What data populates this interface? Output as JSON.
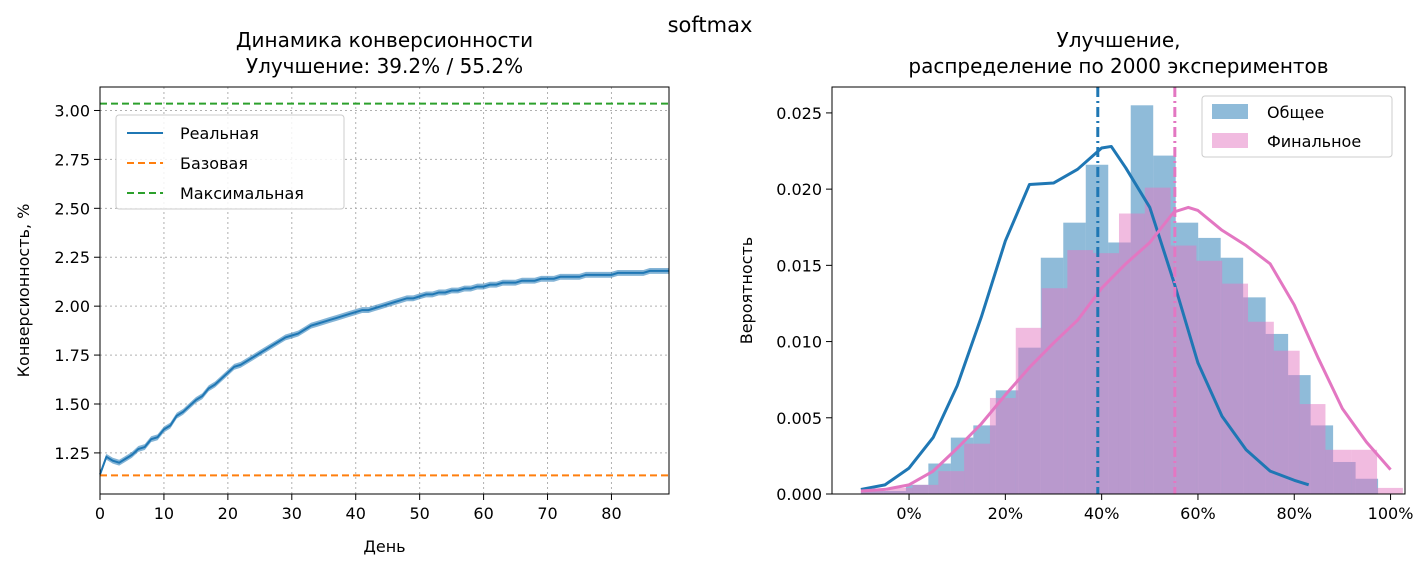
{
  "suptitle": "softmax",
  "chart_data": [
    {
      "type": "line",
      "title": "Динамика конверсионности\nУлучшение: 39.2% / 55.2%",
      "xlabel": "День",
      "ylabel": "Конверсионность, %",
      "xlim": [
        0,
        89
      ],
      "ylim": [
        1.04,
        3.12
      ],
      "xticks": [
        "0",
        "10",
        "20",
        "30",
        "40",
        "50",
        "60",
        "70",
        "80"
      ],
      "yticks": [
        "1.25",
        "1.50",
        "1.75",
        "2.00",
        "2.25",
        "2.50",
        "2.75",
        "3.00"
      ],
      "grid": true,
      "legend_position": "upper-left",
      "series": [
        {
          "name": "Реальная",
          "color": "#1f77b4",
          "style": "solid",
          "x": [
            0,
            1,
            2,
            3,
            4,
            5,
            6,
            7,
            8,
            9,
            10,
            11,
            12,
            13,
            14,
            15,
            16,
            17,
            18,
            19,
            20,
            21,
            22,
            23,
            24,
            25,
            26,
            27,
            28,
            29,
            30,
            31,
            32,
            33,
            34,
            35,
            36,
            37,
            38,
            39,
            40,
            41,
            42,
            43,
            44,
            45,
            46,
            47,
            48,
            49,
            50,
            51,
            52,
            53,
            54,
            55,
            56,
            57,
            58,
            59,
            60,
            61,
            62,
            63,
            64,
            65,
            66,
            67,
            68,
            69,
            70,
            71,
            72,
            73,
            74,
            75,
            76,
            77,
            78,
            79,
            80,
            81,
            82,
            83,
            84,
            85,
            86,
            87,
            88,
            89
          ],
          "values": [
            1.14,
            1.23,
            1.21,
            1.2,
            1.22,
            1.24,
            1.27,
            1.28,
            1.32,
            1.33,
            1.37,
            1.39,
            1.44,
            1.46,
            1.49,
            1.52,
            1.54,
            1.58,
            1.6,
            1.63,
            1.66,
            1.69,
            1.7,
            1.72,
            1.74,
            1.76,
            1.78,
            1.8,
            1.82,
            1.84,
            1.85,
            1.86,
            1.88,
            1.9,
            1.91,
            1.92,
            1.93,
            1.94,
            1.95,
            1.96,
            1.97,
            1.98,
            1.98,
            1.99,
            2.0,
            2.01,
            2.02,
            2.03,
            2.04,
            2.04,
            2.05,
            2.06,
            2.06,
            2.07,
            2.07,
            2.08,
            2.08,
            2.09,
            2.09,
            2.1,
            2.1,
            2.11,
            2.11,
            2.12,
            2.12,
            2.12,
            2.13,
            2.13,
            2.13,
            2.14,
            2.14,
            2.14,
            2.15,
            2.15,
            2.15,
            2.15,
            2.16,
            2.16,
            2.16,
            2.16,
            2.16,
            2.17,
            2.17,
            2.17,
            2.17,
            2.17,
            2.18,
            2.18,
            2.18,
            2.18
          ],
          "band_halfwidth": 0.015
        },
        {
          "name": "Базовая",
          "color": "#ff7f0e",
          "style": "dashed",
          "y": 1.135
        },
        {
          "name": "Максимальная",
          "color": "#2ca02c",
          "style": "dashed",
          "y": 3.035
        }
      ]
    },
    {
      "type": "bar",
      "subtype": "histogram+kde",
      "title": "Улучшение,\nраспределение по 2000 экспериментов",
      "xlabel": "",
      "ylabel": "Вероятность",
      "xlim": [
        -0.16,
        1.03
      ],
      "ylim": [
        0,
        0.0267
      ],
      "xticks": [
        "0%",
        "20%",
        "40%",
        "60%",
        "80%",
        "100%"
      ],
      "yticks": [
        "0.000",
        "0.005",
        "0.010",
        "0.015",
        "0.020",
        "0.025"
      ],
      "grid": false,
      "legend_position": "upper-right",
      "series": [
        {
          "name": "Общее",
          "color": "#1f77b4",
          "alpha": 0.5,
          "bin_start": -0.1,
          "bin_width": 0.0467,
          "values": [
            0.0002,
            0.0002,
            0.0006,
            0.002,
            0.0037,
            0.0045,
            0.0068,
            0.0096,
            0.0155,
            0.0178,
            0.0216,
            0.0165,
            0.0255,
            0.0222,
            0.0178,
            0.0168,
            0.0155,
            0.0129,
            0.0105,
            0.0078,
            0.0045,
            0.0021,
            0.001
          ],
          "mean_line": 0.392,
          "kde": {
            "x": [
              -0.1,
              -0.05,
              0.0,
              0.05,
              0.1,
              0.15,
              0.2,
              0.25,
              0.3,
              0.35,
              0.4,
              0.42,
              0.45,
              0.5,
              0.55,
              0.6,
              0.65,
              0.7,
              0.75,
              0.8,
              0.83
            ],
            "y": [
              0.0003,
              0.0006,
              0.0017,
              0.0037,
              0.0071,
              0.0116,
              0.0166,
              0.0203,
              0.0204,
              0.0213,
              0.0227,
              0.0228,
              0.0214,
              0.0188,
              0.0139,
              0.0086,
              0.0051,
              0.0029,
              0.0015,
              0.0009,
              0.0006
            ]
          }
        },
        {
          "name": "Финальное",
          "color": "#e377c2",
          "alpha": 0.5,
          "bin_start": -0.1,
          "bin_width": 0.0536,
          "values": [
            0.0002,
            0.0004,
            0.0006,
            0.0015,
            0.0033,
            0.0063,
            0.0109,
            0.0135,
            0.016,
            0.0158,
            0.0184,
            0.0201,
            0.0163,
            0.0153,
            0.0138,
            0.0113,
            0.0094,
            0.0059,
            0.0029,
            0.0029,
            0.0004
          ],
          "mean_line": 0.552,
          "kde": {
            "x": [
              -0.1,
              -0.05,
              0.0,
              0.05,
              0.1,
              0.15,
              0.2,
              0.25,
              0.3,
              0.35,
              0.4,
              0.45,
              0.5,
              0.55,
              0.58,
              0.6,
              0.65,
              0.7,
              0.75,
              0.8,
              0.85,
              0.9,
              0.95,
              1.0
            ],
            "y": [
              0.0002,
              0.0003,
              0.0006,
              0.0015,
              0.003,
              0.0046,
              0.0065,
              0.0083,
              0.0099,
              0.0114,
              0.0135,
              0.0151,
              0.0165,
              0.0185,
              0.0188,
              0.0186,
              0.0173,
              0.0163,
              0.0151,
              0.0124,
              0.0089,
              0.0056,
              0.0034,
              0.0016
            ]
          }
        }
      ]
    }
  ]
}
